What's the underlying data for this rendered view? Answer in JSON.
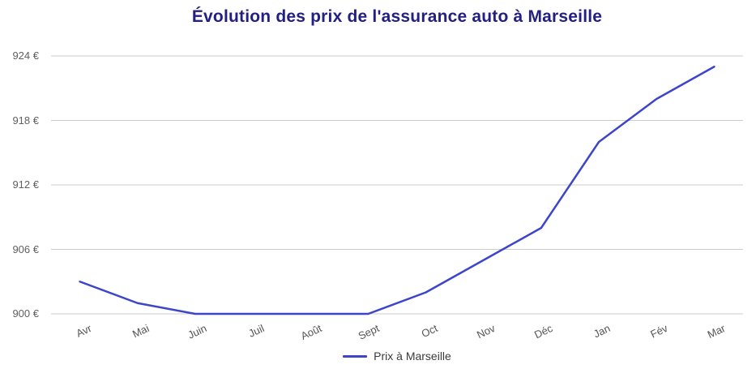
{
  "title": "Évolution des prix de l'assurance auto à Marseille",
  "chart_data": {
    "type": "line",
    "title": "Évolution des prix de l'assurance auto à Marseille",
    "categories": [
      "Avr",
      "Mai",
      "Juin",
      "Juil",
      "Août",
      "Sept",
      "Oct",
      "Nov",
      "Déc",
      "Jan",
      "Fév",
      "Mar"
    ],
    "series": [
      {
        "name": "Prix à Marseille",
        "values": [
          903,
          901,
          900,
          900,
          900,
          900,
          902,
          905,
          908,
          916,
          920,
          923
        ]
      }
    ],
    "xlabel": "",
    "ylabel": "",
    "ylim": [
      900,
      924
    ],
    "yticks": [
      900,
      906,
      912,
      918,
      924
    ],
    "ytick_labels": [
      "900 €",
      "906 €",
      "912 €",
      "918 €",
      "924 €"
    ],
    "grid": "horizontal-only",
    "legend_position": "bottom",
    "x_label_rotation_deg": -25
  },
  "legend": {
    "label": "Prix à Marseille"
  },
  "colors": {
    "title": "#232082",
    "line": "#3d46cb",
    "grid": "#cccccc",
    "y_axis_labels": "#5f5f5f",
    "x_axis_labels": "#545454",
    "legend_text": "#3a3a3a"
  }
}
